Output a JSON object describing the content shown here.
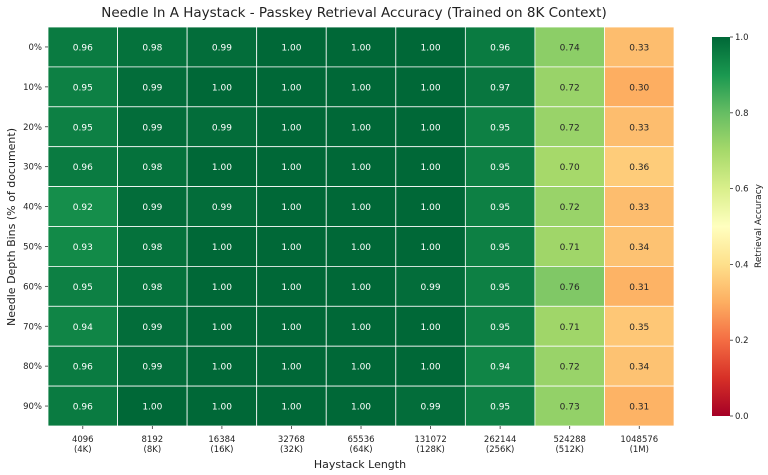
{
  "chart_data": {
    "type": "heatmap",
    "title": "Needle In A Haystack - Passkey Retrieval Accuracy (Trained on 8K Context)",
    "xlabel": "Haystack Length",
    "ylabel": "Needle Depth Bins (% of document)",
    "colorbar_label": "Retrieval Accuracy",
    "colorbar_ticks": [
      "0.0",
      "0.2",
      "0.4",
      "0.6",
      "0.8",
      "1.0"
    ],
    "vmin": 0.0,
    "vmax": 1.0,
    "colormap": "RdYlGn",
    "x_categories": [
      {
        "line1": "4096",
        "line2": "(4K)"
      },
      {
        "line1": "8192",
        "line2": "(8K)"
      },
      {
        "line1": "16384",
        "line2": "(16K)"
      },
      {
        "line1": "32768",
        "line2": "(32K)"
      },
      {
        "line1": "65536",
        "line2": "(64K)"
      },
      {
        "line1": "131072",
        "line2": "(128K)"
      },
      {
        "line1": "262144",
        "line2": "(256K)"
      },
      {
        "line1": "524288",
        "line2": "(512K)"
      },
      {
        "line1": "1048576",
        "line2": "(1M)"
      }
    ],
    "y_categories": [
      "0%",
      "10%",
      "20%",
      "30%",
      "40%",
      "50%",
      "60%",
      "70%",
      "80%",
      "90%"
    ],
    "values": [
      [
        0.96,
        0.98,
        0.99,
        1.0,
        1.0,
        1.0,
        0.96,
        0.74,
        0.33
      ],
      [
        0.95,
        0.99,
        1.0,
        1.0,
        1.0,
        1.0,
        0.97,
        0.72,
        0.3
      ],
      [
        0.95,
        0.99,
        0.99,
        1.0,
        1.0,
        1.0,
        0.95,
        0.72,
        0.33
      ],
      [
        0.96,
        0.98,
        1.0,
        1.0,
        1.0,
        1.0,
        0.95,
        0.7,
        0.36
      ],
      [
        0.92,
        0.99,
        0.99,
        1.0,
        1.0,
        1.0,
        0.95,
        0.72,
        0.33
      ],
      [
        0.93,
        0.98,
        1.0,
        1.0,
        1.0,
        1.0,
        0.95,
        0.71,
        0.34
      ],
      [
        0.95,
        0.98,
        1.0,
        1.0,
        1.0,
        0.99,
        0.95,
        0.76,
        0.31
      ],
      [
        0.94,
        0.99,
        1.0,
        1.0,
        1.0,
        1.0,
        0.95,
        0.71,
        0.35
      ],
      [
        0.96,
        0.99,
        1.0,
        1.0,
        1.0,
        1.0,
        0.94,
        0.72,
        0.34
      ],
      [
        0.96,
        1.0,
        1.0,
        1.0,
        1.0,
        0.99,
        0.95,
        0.73,
        0.31
      ]
    ]
  }
}
